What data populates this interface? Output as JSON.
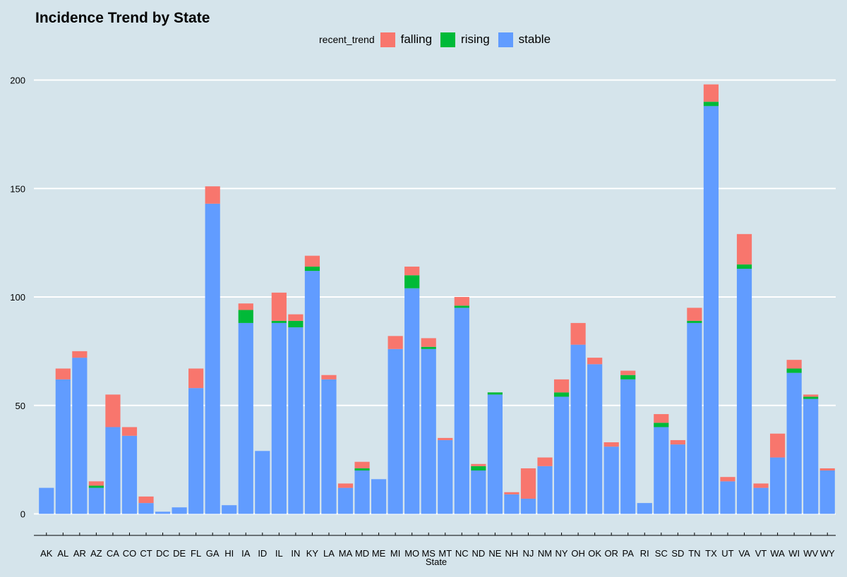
{
  "chart_data": {
    "type": "bar",
    "stacked": true,
    "title": "Incidence Trend by State",
    "xlabel": "State",
    "ylabel": "",
    "ylim": [
      0,
      200
    ],
    "yticks": [
      0,
      50,
      100,
      150,
      200
    ],
    "grid": true,
    "legend": {
      "title": "recent_trend",
      "placement": "top"
    },
    "categories": [
      "AK",
      "AL",
      "AR",
      "AZ",
      "CA",
      "CO",
      "CT",
      "DC",
      "DE",
      "FL",
      "GA",
      "HI",
      "IA",
      "ID",
      "IL",
      "IN",
      "KY",
      "LA",
      "MA",
      "MD",
      "ME",
      "MI",
      "MO",
      "MS",
      "MT",
      "NC",
      "ND",
      "NE",
      "NH",
      "NJ",
      "NM",
      "NY",
      "OH",
      "OK",
      "OR",
      "PA",
      "RI",
      "SC",
      "SD",
      "TN",
      "TX",
      "UT",
      "VA",
      "VT",
      "WA",
      "WI",
      "WV",
      "WY"
    ],
    "series": [
      {
        "name": "stable",
        "color": "#619cff",
        "values": [
          12,
          62,
          72,
          12,
          40,
          36,
          5,
          1,
          3,
          58,
          143,
          4,
          88,
          29,
          88,
          86,
          112,
          62,
          12,
          20,
          16,
          76,
          104,
          76,
          34,
          95,
          20,
          55,
          9,
          7,
          22,
          54,
          78,
          69,
          31,
          62,
          5,
          40,
          32,
          88,
          188,
          15,
          113,
          12,
          26,
          65,
          53,
          20
        ]
      },
      {
        "name": "rising",
        "color": "#00ba38",
        "values": [
          0,
          0,
          0,
          1,
          0,
          0,
          0,
          0,
          0,
          0,
          0,
          0,
          6,
          0,
          1,
          3,
          2,
          0,
          0,
          1,
          0,
          0,
          6,
          1,
          0,
          1,
          2,
          1,
          0,
          0,
          0,
          2,
          0,
          0,
          0,
          2,
          0,
          2,
          0,
          1,
          2,
          0,
          2,
          0,
          0,
          2,
          1,
          0
        ]
      },
      {
        "name": "falling",
        "color": "#f8766d",
        "values": [
          0,
          5,
          3,
          2,
          15,
          4,
          3,
          0,
          0,
          9,
          8,
          0,
          3,
          0,
          13,
          3,
          5,
          2,
          2,
          3,
          0,
          6,
          4,
          4,
          1,
          4,
          1,
          0,
          1,
          14,
          4,
          6,
          10,
          3,
          2,
          2,
          0,
          4,
          2,
          6,
          8,
          2,
          14,
          2,
          11,
          4,
          1,
          1
        ]
      }
    ]
  }
}
